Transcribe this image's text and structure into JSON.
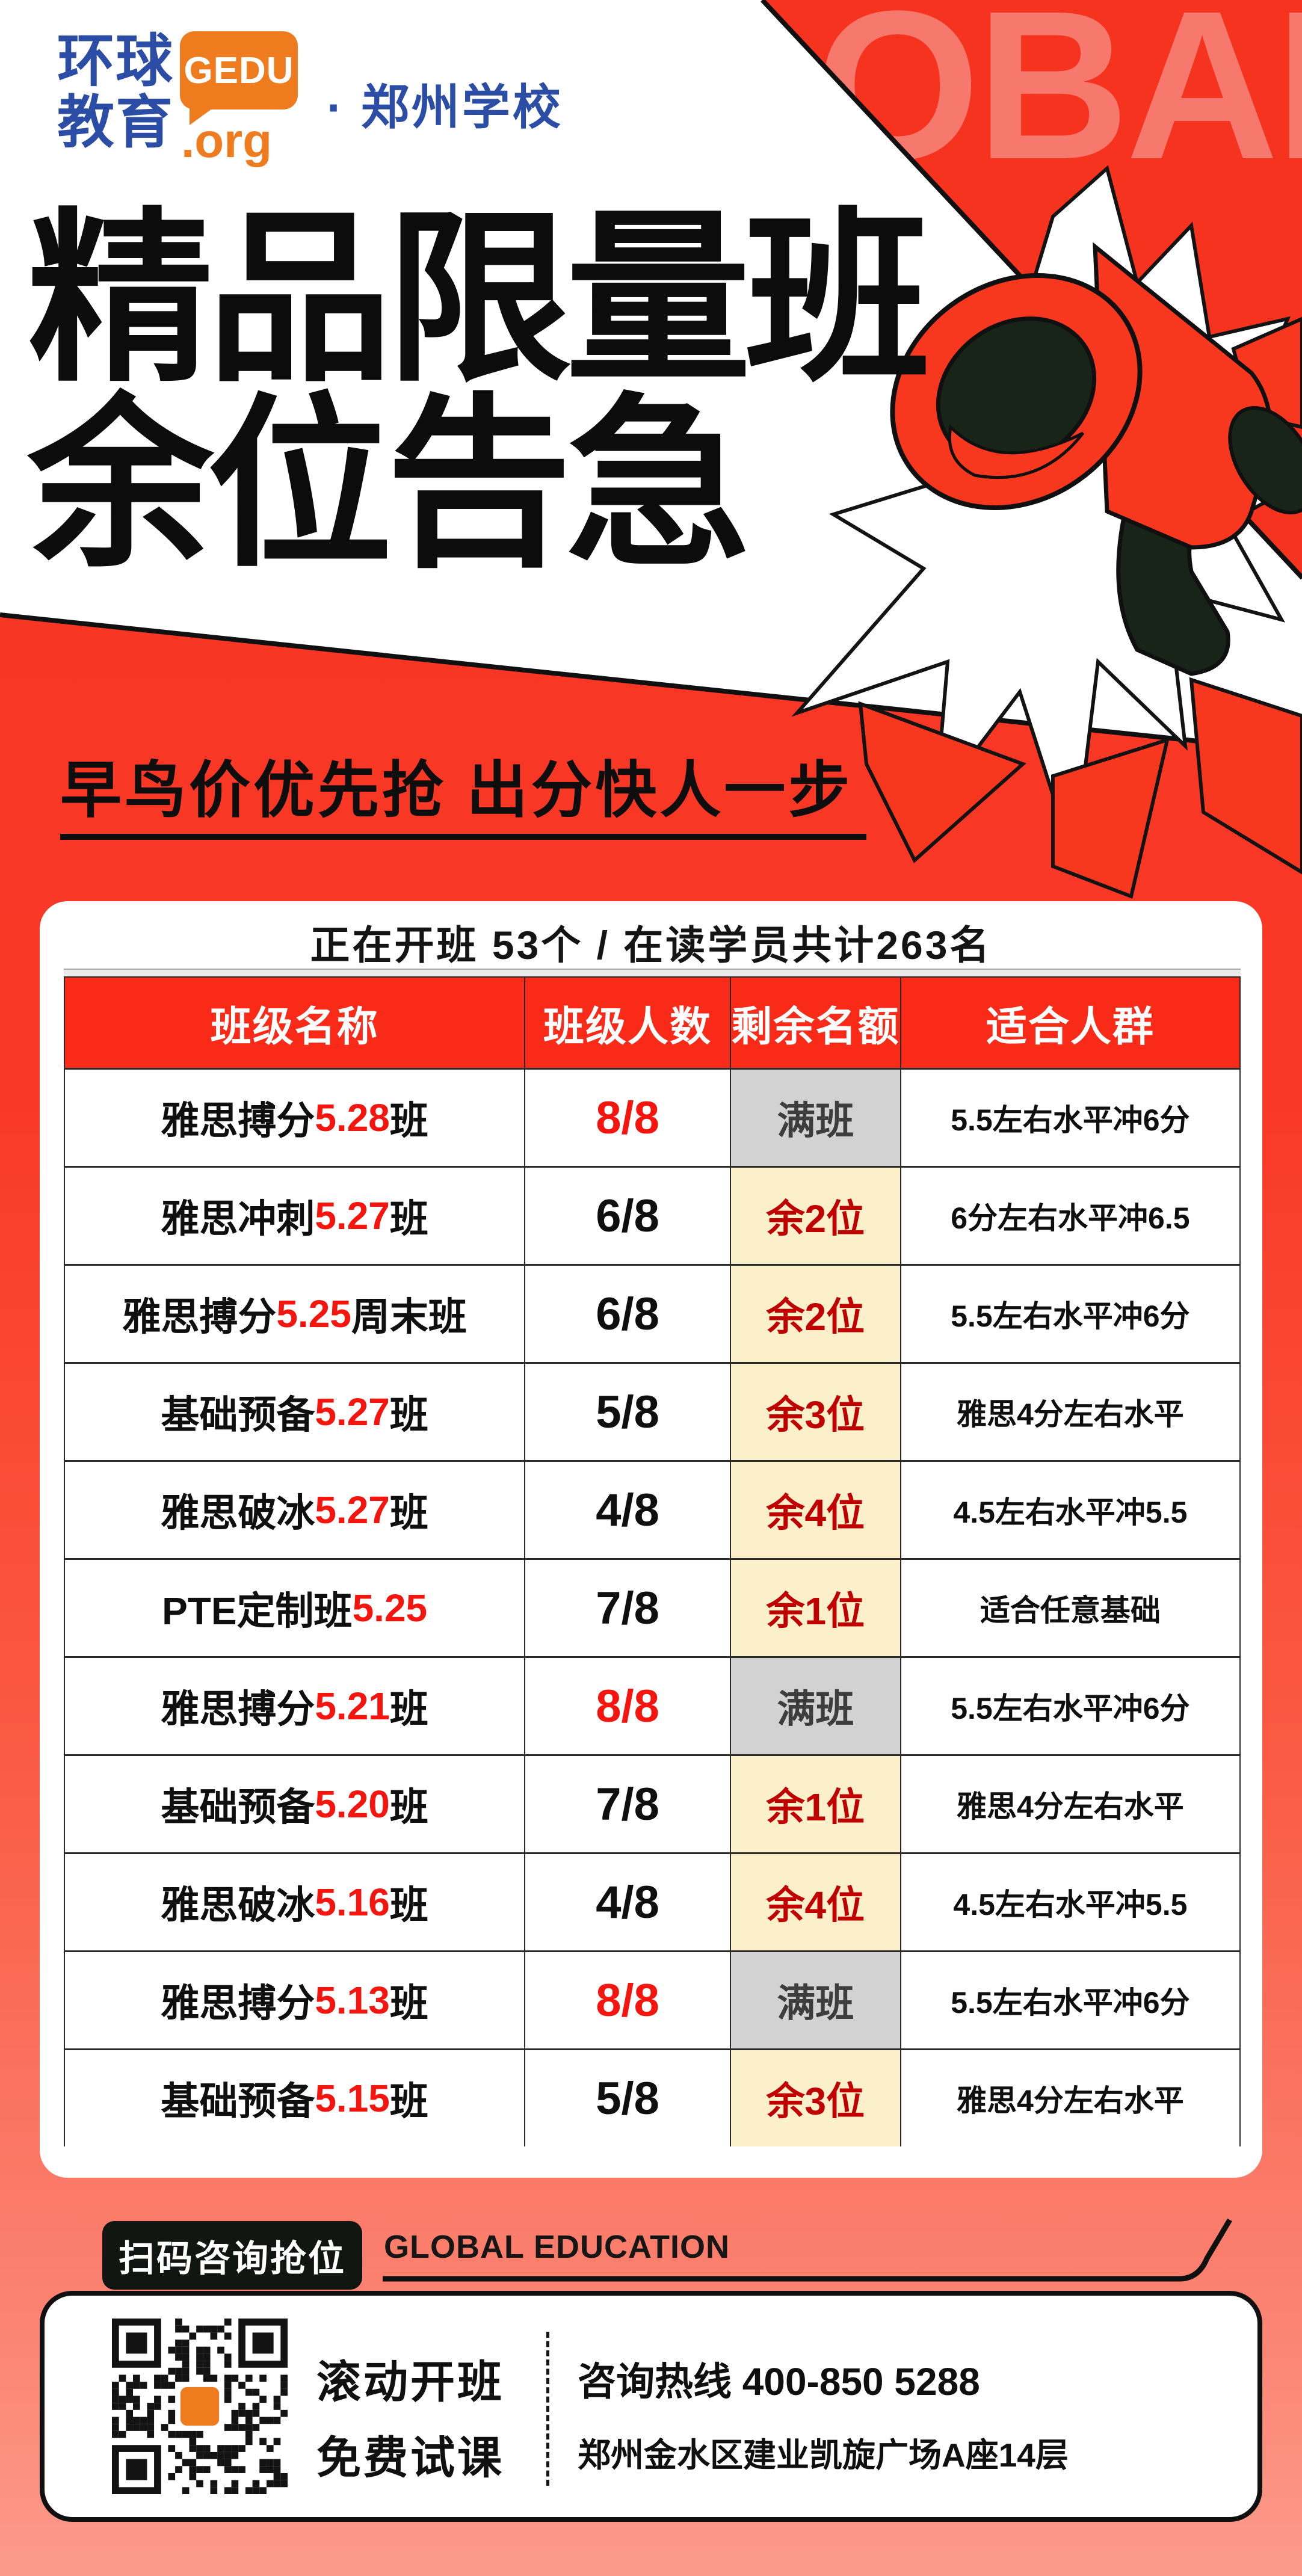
{
  "brand": {
    "cn1": "环球",
    "cn2": "教育",
    "bubble": "GEDU",
    "org": ".org",
    "school": "· 郑州学校",
    "watermark": "OBAL"
  },
  "hero": {
    "title1": "精品限量班",
    "title2": "余位告急",
    "subtitle": "早鸟价优先抢 出分快人一步"
  },
  "board": {
    "summary": "正在开班 53个 / 在读学员共计263名",
    "columns": [
      "班级名称",
      "班级人数",
      "剩余名额",
      "适合人群"
    ],
    "rows": [
      {
        "prefix": "雅思搏分",
        "num": "5.28",
        "suffix": "班",
        "size": "8/8",
        "size_red": true,
        "slots": "满班",
        "full": true,
        "fit": "5.5左右水平冲6分"
      },
      {
        "prefix": "雅思冲刺",
        "num": "5.27",
        "suffix": "班",
        "size": "6/8",
        "size_red": false,
        "slots": "余2位",
        "full": false,
        "fit": "6分左右水平冲6.5"
      },
      {
        "prefix": "雅思搏分",
        "num": "5.25",
        "suffix": "周末班",
        "size": "6/8",
        "size_red": false,
        "slots": "余2位",
        "full": false,
        "fit": "5.5左右水平冲6分"
      },
      {
        "prefix": "基础预备",
        "num": "5.27",
        "suffix": "班",
        "size": "5/8",
        "size_red": false,
        "slots": "余3位",
        "full": false,
        "fit": "雅思4分左右水平"
      },
      {
        "prefix": "雅思破冰",
        "num": "5.27",
        "suffix": "班",
        "size": "4/8",
        "size_red": false,
        "slots": "余4位",
        "full": false,
        "fit": "4.5左右水平冲5.5"
      },
      {
        "prefix": "PTE定制班",
        "num": "5.25",
        "suffix": "",
        "size": "7/8",
        "size_red": false,
        "slots": "余1位",
        "full": false,
        "fit": "适合任意基础"
      },
      {
        "prefix": "雅思搏分",
        "num": "5.21",
        "suffix": "班",
        "size": "8/8",
        "size_red": true,
        "slots": "满班",
        "full": true,
        "fit": "5.5左右水平冲6分"
      },
      {
        "prefix": "基础预备",
        "num": "5.20",
        "suffix": "班",
        "size": "7/8",
        "size_red": false,
        "slots": "余1位",
        "full": false,
        "fit": "雅思4分左右水平"
      },
      {
        "prefix": "雅思破冰",
        "num": "5.16",
        "suffix": "班",
        "size": "4/8",
        "size_red": false,
        "slots": "余4位",
        "full": false,
        "fit": "4.5左右水平冲5.5"
      },
      {
        "prefix": "雅思搏分",
        "num": "5.13",
        "suffix": "班",
        "size": "8/8",
        "size_red": true,
        "slots": "满班",
        "full": true,
        "fit": "5.5左右水平冲6分"
      },
      {
        "prefix": "基础预备",
        "num": "5.15",
        "suffix": "班",
        "size": "5/8",
        "size_red": false,
        "slots": "余3位",
        "full": false,
        "fit": "雅思4分左右水平"
      }
    ]
  },
  "footer": {
    "tag": "扫码咨询抢位",
    "brand_en": "GLOBAL EDUCATION",
    "line1": "滚动开班",
    "line2": "免费试课",
    "hotline": "咨询热线 400-850 5288",
    "address": "郑州金水区建业凯旋广场A座14层"
  },
  "colors": {
    "red_top": "#f73420",
    "salmon_bottom": "#fc9a8a",
    "corner_red": "#f5331f",
    "watermark_red": "#f7786c",
    "header_red": "#f92a18",
    "slot_yellow": "#fbf0c9",
    "slot_gray": "#d2d2d2",
    "slot_dark_red": "#c00000",
    "number_red": "#f3150e",
    "logo_blue": "#2b4da5",
    "logo_orange": "#ef7b1f"
  }
}
